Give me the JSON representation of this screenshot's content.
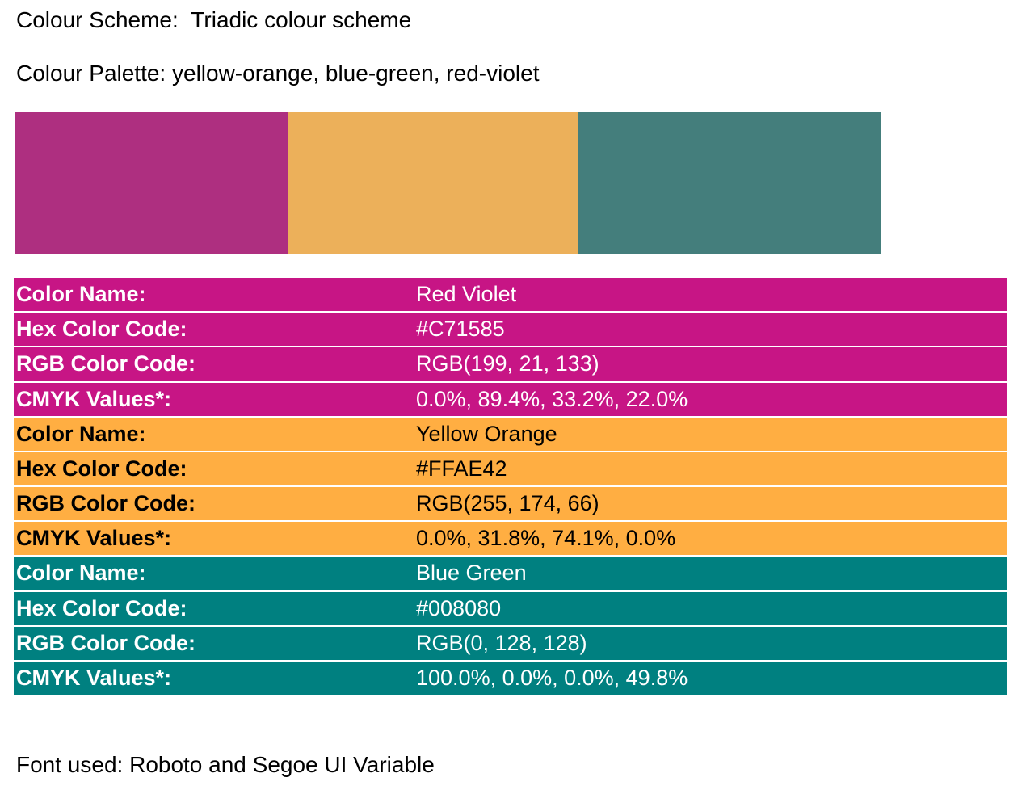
{
  "header": {
    "scheme_label": "Colour Scheme:",
    "scheme_value": "Triadic colour scheme",
    "palette_label": "Colour Palette:",
    "palette_value": "yellow-orange, blue-green, red-violet"
  },
  "swatches": [
    {
      "name": "red-violet-swatch",
      "color": "#AE2F80",
      "width_share": 338
    },
    {
      "name": "yellow-orange-swatch",
      "color": "#ECB05A",
      "width_share": 359
    },
    {
      "name": "blue-green-swatch",
      "color": "#447E7C",
      "width_share": 374
    }
  ],
  "colors": [
    {
      "bg": "#C71585",
      "text_color": "#FFFFFF",
      "rows": [
        {
          "label": "Color Name:",
          "value": "Red Violet"
        },
        {
          "label": "Hex Color Code:",
          "value": "#C71585"
        },
        {
          "label": "RGB Color Code:",
          "value": "RGB(199, 21, 133)"
        },
        {
          "label": "CMYK Values*:",
          "value": "0.0%, 89.4%, 33.2%, 22.0%"
        }
      ]
    },
    {
      "bg": "#FFAE42",
      "text_color": "#000000",
      "rows": [
        {
          "label": "Color Name:",
          "value": "Yellow Orange"
        },
        {
          "label": "Hex Color Code:",
          "value": "#FFAE42"
        },
        {
          "label": "RGB Color Code:",
          "value": "RGB(255, 174, 66)"
        },
        {
          "label": "CMYK Values*:",
          "value": "0.0%, 31.8%, 74.1%, 0.0%"
        }
      ]
    },
    {
      "bg": "#008080",
      "text_color": "#FFFFFF",
      "rows": [
        {
          "label": "Color Name:",
          "value": "Blue Green"
        },
        {
          "label": "Hex Color Code:",
          "value": "#008080"
        },
        {
          "label": "RGB Color Code:",
          "value": "RGB(0, 128, 128)"
        },
        {
          "label": "CMYK Values*:",
          "value": "100.0%, 0.0%, 0.0%, 49.8%"
        }
      ]
    }
  ],
  "footer": {
    "font_label": "Font used:",
    "font_value": "Roboto and Segoe UI Variable"
  }
}
